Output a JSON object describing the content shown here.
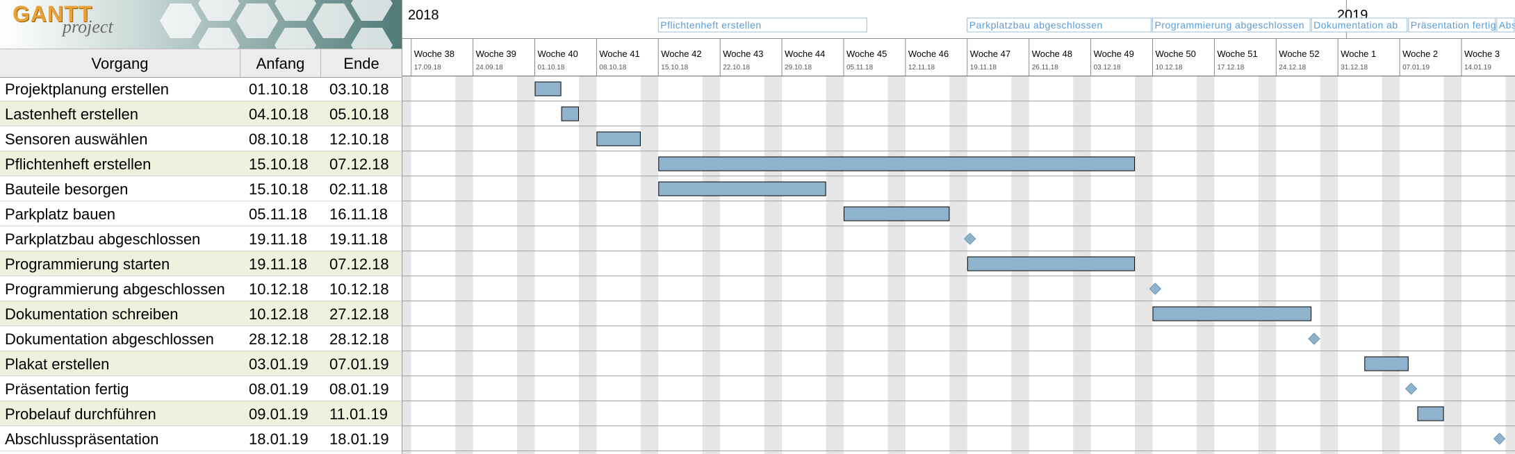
{
  "logo": {
    "title": "GANTT",
    "subtitle": "project"
  },
  "table": {
    "headers": {
      "name": "Vorgang",
      "start": "Anfang",
      "end": "Ende"
    },
    "tasks": [
      {
        "name": "Projektplanung erstellen",
        "start": "01.10.18",
        "end": "03.10.18",
        "kind": "task"
      },
      {
        "name": "Lastenheft erstellen",
        "start": "04.10.18",
        "end": "05.10.18",
        "kind": "task"
      },
      {
        "name": "Sensoren auswählen",
        "start": "08.10.18",
        "end": "12.10.18",
        "kind": "task"
      },
      {
        "name": "Pflichtenheft erstellen",
        "start": "15.10.18",
        "end": "07.12.18",
        "kind": "task"
      },
      {
        "name": "Bauteile besorgen",
        "start": "15.10.18",
        "end": "02.11.18",
        "kind": "task"
      },
      {
        "name": "Parkplatz bauen",
        "start": "05.11.18",
        "end": "16.11.18",
        "kind": "task"
      },
      {
        "name": "Parkplatzbau abgeschlossen",
        "start": "19.11.18",
        "end": "19.11.18",
        "kind": "milestone"
      },
      {
        "name": "Programmierung starten",
        "start": "19.11.18",
        "end": "07.12.18",
        "kind": "task"
      },
      {
        "name": "Programmierung abgeschlossen",
        "start": "10.12.18",
        "end": "10.12.18",
        "kind": "milestone"
      },
      {
        "name": "Dokumentation schreiben",
        "start": "10.12.18",
        "end": "27.12.18",
        "kind": "task"
      },
      {
        "name": "Dokumentation abgeschlossen",
        "start": "28.12.18",
        "end": "28.12.18",
        "kind": "milestone"
      },
      {
        "name": "Plakat erstellen",
        "start": "03.01.19",
        "end": "07.01.19",
        "kind": "task"
      },
      {
        "name": "Präsentation fertig",
        "start": "08.01.19",
        "end": "08.01.19",
        "kind": "milestone"
      },
      {
        "name": "Probelauf durchführen",
        "start": "09.01.19",
        "end": "11.01.19",
        "kind": "task"
      },
      {
        "name": "Abschlusspräsentation",
        "start": "18.01.19",
        "end": "18.01.19",
        "kind": "milestone"
      }
    ]
  },
  "timeline": {
    "years": [
      "2018",
      "2019"
    ],
    "weeks": [
      {
        "label": "Woche 38",
        "date": "17.09.18"
      },
      {
        "label": "Woche 39",
        "date": "24.09.18"
      },
      {
        "label": "Woche 40",
        "date": "01.10.18"
      },
      {
        "label": "Woche 41",
        "date": "08.10.18"
      },
      {
        "label": "Woche 42",
        "date": "15.10.18"
      },
      {
        "label": "Woche 43",
        "date": "22.10.18"
      },
      {
        "label": "Woche 44",
        "date": "29.10.18"
      },
      {
        "label": "Woche 45",
        "date": "05.11.18"
      },
      {
        "label": "Woche 46",
        "date": "12.11.18"
      },
      {
        "label": "Woche 47",
        "date": "19.11.18"
      },
      {
        "label": "Woche 48",
        "date": "26.11.18"
      },
      {
        "label": "Woche 49",
        "date": "03.12.18"
      },
      {
        "label": "Woche 50",
        "date": "10.12.18"
      },
      {
        "label": "Woche 51",
        "date": "17.12.18"
      },
      {
        "label": "Woche 52",
        "date": "24.12.18"
      },
      {
        "label": "Woche 1",
        "date": "31.12.18"
      },
      {
        "label": "Woche 2",
        "date": "07.01.19"
      },
      {
        "label": "Woche 3",
        "date": "14.01.19"
      }
    ],
    "milestone_labels": [
      "Pflichtenheft erstellen",
      "Parkplatzbau abgeschlossen",
      "Programmierung abgeschlossen",
      "Dokumentation ab",
      "Präsentation fertig",
      "Abschlusso"
    ]
  },
  "colors": {
    "bar_fill": "#8fb3cc",
    "bar_border": "#000000",
    "milestone_fill": "#8fb3cc",
    "weekend_shade": "#e6e6e6",
    "row_alt": "#f0f0df",
    "milestone_label": "#5b9bd5"
  }
}
